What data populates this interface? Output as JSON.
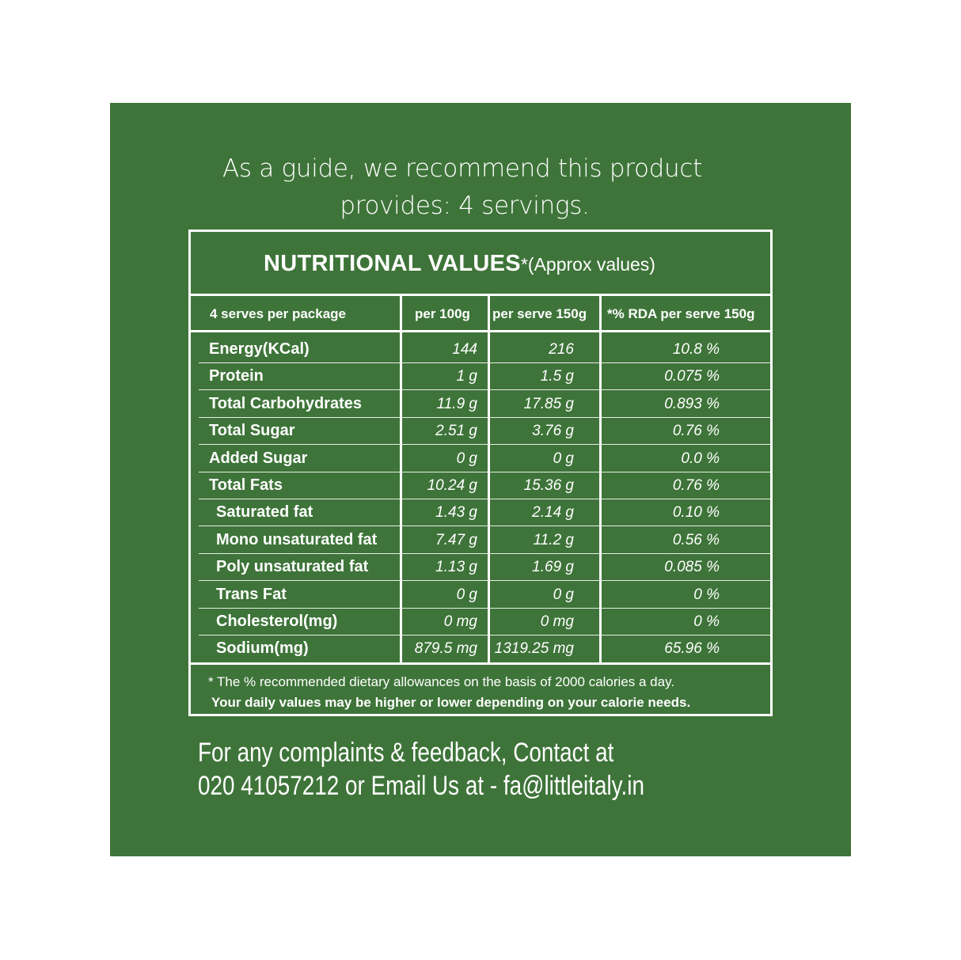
{
  "guide": {
    "line1": "As a guide, we recommend this product",
    "line2": "provides: 4 servings."
  },
  "table": {
    "title": "NUTRITIONAL VALUES",
    "title_note": "*(Approx values)",
    "headers": [
      "4 serves per package",
      "per 100g",
      "per serve 150g",
      "*% RDA per serve 150g"
    ],
    "rows": [
      {
        "label": "Energy(KCal)",
        "sub": false,
        "per100": "144",
        "perServe": "216",
        "rda": "10.8 %"
      },
      {
        "label": "Protein",
        "sub": false,
        "per100": "1 g",
        "perServe": "1.5 g",
        "rda": "0.075 %"
      },
      {
        "label": "Total Carbohydrates",
        "sub": false,
        "per100": "11.9 g",
        "perServe": "17.85 g",
        "rda": "0.893 %"
      },
      {
        "label": "Total Sugar",
        "sub": false,
        "per100": "2.51 g",
        "perServe": "3.76 g",
        "rda": "0.76 %"
      },
      {
        "label": "Added Sugar",
        "sub": false,
        "per100": "0 g",
        "perServe": "0 g",
        "rda": "0.0 %"
      },
      {
        "label": "Total Fats",
        "sub": false,
        "per100": "10.24 g",
        "perServe": "15.36 g",
        "rda": "0.76 %"
      },
      {
        "label": "Saturated fat",
        "sub": true,
        "per100": "1.43 g",
        "perServe": "2.14 g",
        "rda": "0.10 %"
      },
      {
        "label": "Mono unsaturated fat",
        "sub": true,
        "per100": "7.47 g",
        "perServe": "11.2 g",
        "rda": "0.56 %"
      },
      {
        "label": "Poly unsaturated fat",
        "sub": true,
        "per100": "1.13 g",
        "perServe": "1.69 g",
        "rda": "0.085 %"
      },
      {
        "label": "Trans Fat",
        "sub": true,
        "per100": "0 g",
        "perServe": "0 g",
        "rda": "0 %"
      },
      {
        "label": "Cholesterol(mg)",
        "sub": true,
        "per100": "0 mg",
        "perServe": "0 mg",
        "rda": "0 %"
      },
      {
        "label": "Sodium(mg)",
        "sub": true,
        "per100": "879.5 mg",
        "perServe": "1319.25 mg",
        "rda": "65.96 %"
      }
    ],
    "footnote1": "* The % recommended dietary allowances on the basis of 2000 calories a day.",
    "footnote2": "Your daily values may be higher or lower depending on your calorie needs."
  },
  "contact": {
    "line1": "For any complaints & feedback, Contact at",
    "line2": "020 41057212 or Email Us at - fa@littleitaly.in"
  },
  "colors": {
    "background": "#3e7439",
    "text": "#ffffff"
  }
}
